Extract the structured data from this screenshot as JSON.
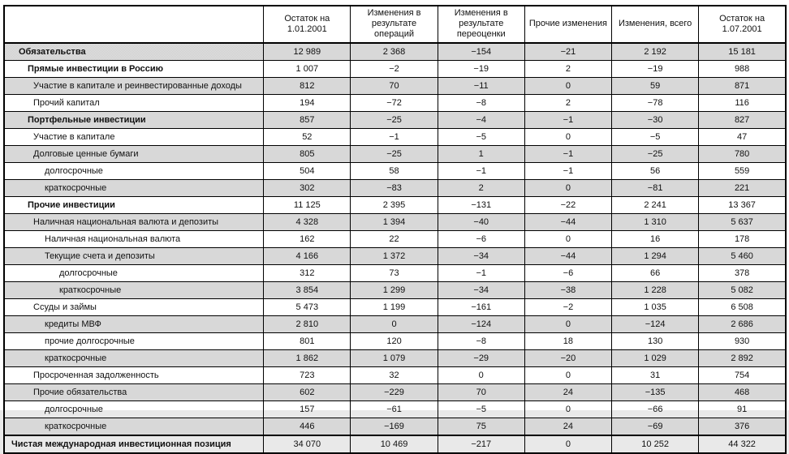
{
  "table": {
    "columns": [
      "Остаток на 1.01.2001",
      "Изменения в результате операций",
      "Изменения в результате переоценки",
      "Прочие изменения",
      "Изменения, всего",
      "Остаток на 1.07.2001"
    ],
    "rows": [
      {
        "label": "Обязательства",
        "indent": 1,
        "bold": true,
        "shaded": true,
        "total": false,
        "values": [
          "12 989",
          "2 368",
          "−154",
          "−21",
          "2 192",
          "15 181"
        ]
      },
      {
        "label": "Прямые инвестиции в Россию",
        "indent": 2,
        "bold": true,
        "shaded": false,
        "total": false,
        "values": [
          "1 007",
          "−2",
          "−19",
          "2",
          "−19",
          "988"
        ]
      },
      {
        "label": "Участие в капитале и реинвестированные доходы",
        "indent": 3,
        "bold": false,
        "shaded": true,
        "total": false,
        "values": [
          "812",
          "70",
          "−11",
          "0",
          "59",
          "871"
        ]
      },
      {
        "label": "Прочий капитал",
        "indent": 3,
        "bold": false,
        "shaded": false,
        "total": false,
        "values": [
          "194",
          "−72",
          "−8",
          "2",
          "−78",
          "116"
        ]
      },
      {
        "label": "Портфельные инвестиции",
        "indent": 2,
        "bold": true,
        "shaded": true,
        "total": false,
        "values": [
          "857",
          "−25",
          "−4",
          "−1",
          "−30",
          "827"
        ]
      },
      {
        "label": "Участие в капитале",
        "indent": 3,
        "bold": false,
        "shaded": false,
        "total": false,
        "values": [
          "52",
          "−1",
          "−5",
          "0",
          "−5",
          "47"
        ]
      },
      {
        "label": "Долговые ценные бумаги",
        "indent": 3,
        "bold": false,
        "shaded": true,
        "total": false,
        "values": [
          "805",
          "−25",
          "1",
          "−1",
          "−25",
          "780"
        ]
      },
      {
        "label": "долгосрочные",
        "indent": 4,
        "bold": false,
        "shaded": false,
        "total": false,
        "values": [
          "504",
          "58",
          "−1",
          "−1",
          "56",
          "559"
        ]
      },
      {
        "label": "краткосрочные",
        "indent": 4,
        "bold": false,
        "shaded": true,
        "total": false,
        "values": [
          "302",
          "−83",
          "2",
          "0",
          "−81",
          "221"
        ]
      },
      {
        "label": "Прочие инвестиции",
        "indent": 2,
        "bold": true,
        "shaded": false,
        "total": false,
        "values": [
          "11 125",
          "2 395",
          "−131",
          "−22",
          "2 241",
          "13 367"
        ]
      },
      {
        "label": "Наличная национальная валюта и депозиты",
        "indent": 3,
        "bold": false,
        "shaded": true,
        "total": false,
        "values": [
          "4 328",
          "1 394",
          "−40",
          "−44",
          "1 310",
          "5 637"
        ]
      },
      {
        "label": "Наличная национальная валюта",
        "indent": 4,
        "bold": false,
        "shaded": false,
        "total": false,
        "values": [
          "162",
          "22",
          "−6",
          "0",
          "16",
          "178"
        ]
      },
      {
        "label": "Текущие счета и депозиты",
        "indent": 4,
        "bold": false,
        "shaded": true,
        "total": false,
        "values": [
          "4 166",
          "1 372",
          "−34",
          "−44",
          "1 294",
          "5 460"
        ]
      },
      {
        "label": "долгосрочные",
        "indent": 5,
        "bold": false,
        "shaded": false,
        "total": false,
        "values": [
          "312",
          "73",
          "−1",
          "−6",
          "66",
          "378"
        ]
      },
      {
        "label": "краткосрочные",
        "indent": 5,
        "bold": false,
        "shaded": true,
        "total": false,
        "values": [
          "3 854",
          "1 299",
          "−34",
          "−38",
          "1 228",
          "5 082"
        ]
      },
      {
        "label": "Ссуды и займы",
        "indent": 3,
        "bold": false,
        "shaded": false,
        "total": false,
        "values": [
          "5 473",
          "1 199",
          "−161",
          "−2",
          "1 035",
          "6 508"
        ]
      },
      {
        "label": "кредиты МВФ",
        "indent": 4,
        "bold": false,
        "shaded": true,
        "total": false,
        "values": [
          "2 810",
          "0",
          "−124",
          "0",
          "−124",
          "2 686"
        ]
      },
      {
        "label": "прочие долгосрочные",
        "indent": 4,
        "bold": false,
        "shaded": false,
        "total": false,
        "values": [
          "801",
          "120",
          "−8",
          "18",
          "130",
          "930"
        ]
      },
      {
        "label": "краткосрочные",
        "indent": 4,
        "bold": false,
        "shaded": true,
        "total": false,
        "values": [
          "1 862",
          "1 079",
          "−29",
          "−20",
          "1 029",
          "2 892"
        ]
      },
      {
        "label": "Просроченная задолженность",
        "indent": 3,
        "bold": false,
        "shaded": false,
        "total": false,
        "values": [
          "723",
          "32",
          "0",
          "0",
          "31",
          "754"
        ]
      },
      {
        "label": "Прочие обязательства",
        "indent": 3,
        "bold": false,
        "shaded": true,
        "total": false,
        "values": [
          "602",
          "−229",
          "70",
          "24",
          "−135",
          "468"
        ]
      },
      {
        "label": "долгосрочные",
        "indent": 4,
        "bold": false,
        "shaded": false,
        "total": false,
        "values": [
          "157",
          "−61",
          "−5",
          "0",
          "−66",
          "91"
        ]
      },
      {
        "label": "краткосрочные",
        "indent": 4,
        "bold": false,
        "shaded": true,
        "total": false,
        "values": [
          "446",
          "−169",
          "75",
          "24",
          "−69",
          "376"
        ]
      },
      {
        "label": "Чистая международная инвестиционная позиция",
        "indent": 0,
        "bold": true,
        "shaded": false,
        "total": true,
        "values": [
          "34 070",
          "10 469",
          "−217",
          "0",
          "10 252",
          "44 322"
        ]
      }
    ]
  }
}
